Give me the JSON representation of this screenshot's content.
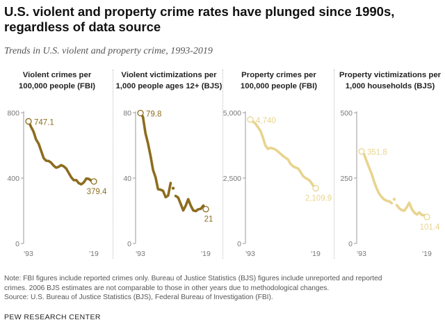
{
  "title": "U.S. violent and property crime rates have plunged since 1990s, regardless of data source",
  "subtitle": "Trends in U.S. violent and property crime, 1993-2019",
  "note_line1": "Note: FBI figures include reported crimes only. Bureau of Justice Statistics (BJS) figures include unreported and reported",
  "note_line2": "crimes. 2006 BJS estimates are not comparable to those in other years due to methodological changes.",
  "source": "Source: U.S. Bureau of Justice Statistics (BJS), Federal Bureau of Investigation (FBI).",
  "brand": "PEW RESEARCH CENTER",
  "colors": {
    "dark": "#8c6d1f",
    "light": "#e8d48e",
    "axis": "#999999",
    "grid": "#dddddd"
  },
  "chart_data": [
    {
      "type": "line",
      "title_lines": [
        "Violent crimes per",
        "100,000 people (FBI)"
      ],
      "color": "dark",
      "ylim": [
        0,
        800
      ],
      "yticks": [
        0,
        400,
        800
      ],
      "ytick_labels": [
        "0",
        "400",
        "800"
      ],
      "xtick_labels": [
        "'93",
        "'19"
      ],
      "x": [
        1993,
        1994,
        1995,
        1996,
        1997,
        1998,
        1999,
        2000,
        2001,
        2002,
        2003,
        2004,
        2005,
        2006,
        2007,
        2008,
        2009,
        2010,
        2011,
        2012,
        2013,
        2014,
        2015,
        2016,
        2017,
        2018,
        2019
      ],
      "values": [
        747.1,
        713.6,
        684.5,
        636.6,
        611.0,
        567.6,
        523.0,
        506.5,
        504.5,
        494.4,
        475.8,
        463.2,
        469.0,
        479.3,
        471.8,
        458.6,
        431.9,
        404.5,
        387.1,
        387.8,
        369.1,
        361.6,
        373.7,
        397.5,
        394.9,
        383.4,
        379.4
      ],
      "start_label": "747.1",
      "end_label": "379.4"
    },
    {
      "type": "line",
      "title_lines": [
        "Violent victimizations per",
        "1,000 people ages 12+ (BJS)"
      ],
      "color": "dark",
      "ylim": [
        0,
        80
      ],
      "yticks": [
        0,
        40,
        80
      ],
      "ytick_labels": [
        "0",
        "40",
        "80"
      ],
      "xtick_labels": [
        "'93",
        "'19"
      ],
      "x": [
        1993,
        1994,
        1995,
        1996,
        1997,
        1998,
        1999,
        2000,
        2001,
        2002,
        2003,
        2004,
        2005,
        2006,
        2007,
        2008,
        2009,
        2010,
        2011,
        2012,
        2013,
        2014,
        2015,
        2016,
        2017,
        2018,
        2019
      ],
      "values": [
        79.8,
        77.4,
        67.5,
        61.3,
        53.6,
        45.0,
        40.5,
        33.2,
        32.9,
        32.2,
        28.3,
        29.3,
        37.0,
        33.8,
        29.1,
        28.1,
        24.3,
        20.2,
        23.1,
        27.1,
        23.2,
        20.2,
        19.8,
        20.9,
        21.2,
        23.2,
        21.0
      ],
      "break_years": [
        2005,
        2006,
        2007
      ],
      "start_label": "79.8",
      "end_label": "21"
    },
    {
      "type": "line",
      "title_lines": [
        "Property crimes per",
        "100,000 people (FBI)"
      ],
      "color": "light",
      "ylim": [
        0,
        5000
      ],
      "yticks": [
        0,
        2500,
        5000
      ],
      "ytick_labels": [
        "0",
        "2,500",
        "5,000"
      ],
      "xtick_labels": [
        "'93",
        "'19"
      ],
      "x": [
        1993,
        1994,
        1995,
        1996,
        1997,
        1998,
        1999,
        2000,
        2001,
        2002,
        2003,
        2004,
        2005,
        2006,
        2007,
        2008,
        2009,
        2010,
        2011,
        2012,
        2013,
        2014,
        2015,
        2016,
        2017,
        2018,
        2019
      ],
      "values": [
        4740.0,
        4660.2,
        4590.5,
        4451.0,
        4316.3,
        4052.5,
        3743.6,
        3618.3,
        3658.1,
        3630.6,
        3591.2,
        3514.1,
        3431.5,
        3346.6,
        3276.4,
        3214.6,
        3041.3,
        2945.9,
        2905.4,
        2868.0,
        2733.6,
        2574.1,
        2500.5,
        2450.7,
        2362.2,
        2209.8,
        2109.9
      ],
      "start_label": "4,740",
      "end_label": "2,109.9"
    },
    {
      "type": "line",
      "title_lines": [
        "Property victimizations per",
        "1,000 households (BJS)"
      ],
      "color": "light",
      "ylim": [
        0,
        500
      ],
      "yticks": [
        0,
        250,
        500
      ],
      "ytick_labels": [
        "0",
        "250",
        "500"
      ],
      "xtick_labels": [
        "'93",
        "'19"
      ],
      "x": [
        1993,
        1994,
        1995,
        1996,
        1997,
        1998,
        1999,
        2000,
        2001,
        2002,
        2003,
        2004,
        2005,
        2006,
        2007,
        2008,
        2009,
        2010,
        2011,
        2012,
        2013,
        2014,
        2015,
        2016,
        2017,
        2018,
        2019
      ],
      "values": [
        351.8,
        341.2,
        315.5,
        290.3,
        266.3,
        235.7,
        210.6,
        190.4,
        177.7,
        168.2,
        163.2,
        161.1,
        154.0,
        168.9,
        146.5,
        134.7,
        127.4,
        125.4,
        138.7,
        155.8,
        131.4,
        118.1,
        110.7,
        118.6,
        108.2,
        108.2,
        101.4
      ],
      "break_years": [
        2005,
        2006,
        2007
      ],
      "start_label": "351.8",
      "end_label": "101.4"
    }
  ]
}
